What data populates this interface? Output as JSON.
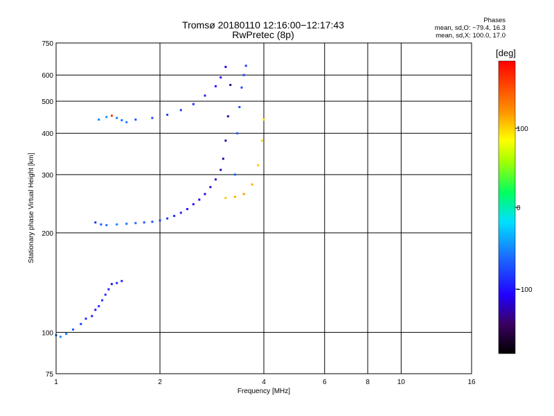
{
  "header": {
    "title_line1": "Tromsø 20180110 12:16:00−12:17:43",
    "title_line2": "RwPretec (8p)"
  },
  "phases_info": {
    "heading": "Phases",
    "line_o": "mean, sd,O: −79.4, 16.3",
    "line_x": "mean, sd,X: 100.0, 17.0"
  },
  "colorbar": {
    "label": "[deg]",
    "ticks": [
      "100",
      "0",
      "−100"
    ]
  },
  "chart_data": {
    "type": "scatter",
    "title": "Tromsø 20180110 12:16:00−12:17:43",
    "subtitle": "RwPretec (8p)",
    "xlabel": "Frequency [MHz]",
    "ylabel": "Stationary phase Virtual Height [km]",
    "x_scale": "log",
    "y_scale": "log",
    "xlim": [
      1,
      16
    ],
    "ylim": [
      75,
      750
    ],
    "x_ticks": [
      "1",
      "2",
      "4",
      "6",
      "8",
      "10",
      "16"
    ],
    "y_ticks": [
      "75",
      "100",
      "200",
      "300",
      "400",
      "500",
      "600",
      "750"
    ],
    "colorbar_range": [
      -180,
      180
    ],
    "series": [
      {
        "color": "phase",
        "x": [
          1.0,
          1.03,
          1.07,
          1.12,
          1.18,
          1.22,
          1.27,
          1.3,
          1.33,
          1.36,
          1.39,
          1.42,
          1.45,
          1.5,
          1.55
        ],
        "y": [
          98,
          97,
          99,
          102,
          106,
          110,
          112,
          117,
          120,
          125,
          130,
          135,
          140,
          141,
          143
        ],
        "phase": [
          -60,
          -50,
          -55,
          -70,
          -80,
          -90,
          -95,
          -100,
          -90,
          -85,
          -90,
          -95,
          -100,
          -90,
          -95
        ]
      },
      {
        "color": "phase",
        "x": [
          1.3,
          1.35,
          1.4,
          1.5,
          1.6,
          1.7,
          1.8,
          1.9,
          2.0,
          2.1,
          2.2,
          2.3,
          2.4,
          2.5,
          2.6,
          2.7,
          2.8,
          2.9,
          3.0,
          3.05,
          3.1,
          3.15,
          3.2
        ],
        "y": [
          215,
          212,
          211,
          212,
          213,
          214,
          215,
          216,
          218,
          221,
          225,
          230,
          236,
          244,
          252,
          262,
          275,
          290,
          310,
          335,
          380,
          450,
          560
        ],
        "phase": [
          -90,
          -70,
          -60,
          -55,
          -60,
          -65,
          -70,
          -75,
          -80,
          -85,
          -90,
          -95,
          -100,
          -105,
          -110,
          -115,
          -120,
          -125,
          -125,
          -130,
          -130,
          -130,
          -135
        ]
      },
      {
        "color": "phase",
        "x": [
          1.7,
          1.9,
          2.1,
          2.3,
          2.5,
          2.7,
          2.9,
          3.0,
          3.1
        ],
        "y": [
          440,
          445,
          455,
          470,
          490,
          520,
          555,
          590,
          635
        ],
        "phase": [
          -70,
          -75,
          -80,
          -85,
          -90,
          -95,
          -100,
          -105,
          -110
        ]
      },
      {
        "color": "phase",
        "x": [
          3.3,
          3.35,
          3.4,
          3.45,
          3.5,
          3.55
        ],
        "y": [
          300,
          400,
          480,
          550,
          600,
          640
        ],
        "phase": [
          -65,
          -70,
          -75,
          -80,
          -80,
          -85
        ]
      },
      {
        "color": "phase",
        "x": [
          3.1,
          3.3,
          3.5,
          3.7,
          3.85,
          3.95,
          4.0
        ],
        "y": [
          255,
          257,
          262,
          280,
          320,
          380,
          440
        ],
        "phase": [
          100,
          110,
          115,
          110,
          100,
          95,
          90
        ]
      },
      {
        "color": "phase",
        "x": [
          1.33,
          1.4,
          1.45,
          1.5,
          1.55,
          1.6
        ],
        "y": [
          440,
          448,
          452,
          445,
          438,
          432
        ],
        "phase": [
          -50,
          -45,
          160,
          -55,
          -60,
          -55
        ]
      }
    ]
  }
}
